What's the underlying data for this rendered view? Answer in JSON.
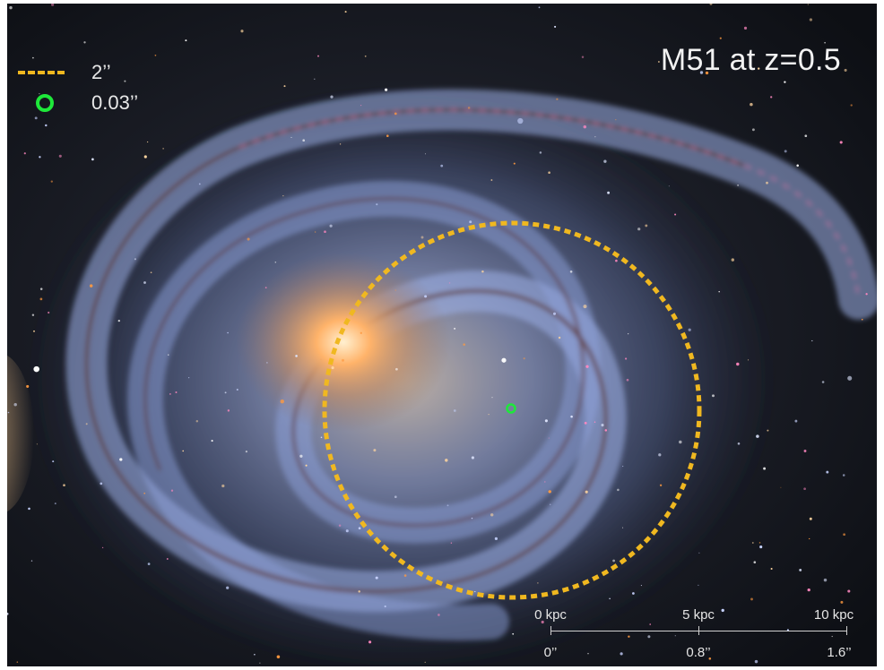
{
  "image": {
    "subject": "spiral galaxy",
    "title": "M51 at z=0.5",
    "colors": {
      "background": "#0f1116",
      "galaxy_arm": "#8aa0d8",
      "galaxy_core": "#ffb36a",
      "dust_lane": "#5a3028",
      "star_forming": "#ff7ab0",
      "aperture_circle": "#f0b820",
      "small_aperture": "#1ee83a"
    }
  },
  "legend": {
    "items": [
      {
        "icon": "dashed-line-icon",
        "label": "2’’"
      },
      {
        "icon": "green-ring-icon",
        "label": "0.03’’"
      }
    ]
  },
  "scale_bar": {
    "kpc_labels": [
      "0 kpc",
      "5 kpc",
      "10 kpc"
    ],
    "arcsec_labels": [
      "0’’",
      "0.8’’",
      "1.6’’"
    ]
  }
}
